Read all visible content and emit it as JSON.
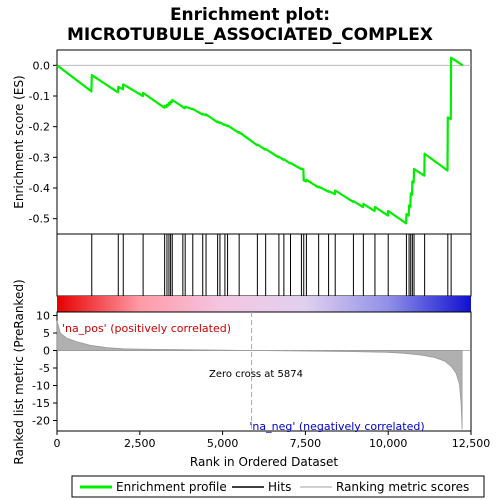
{
  "chart_data": {
    "type": "line",
    "title": "Enrichment plot:\nMICROTUBULE_ASSOCIATED_COMPLEX",
    "xlabel": "Rank in Ordered Dataset",
    "ylabel_top": "Enrichment score (ES)",
    "ylabel_bottom": "Ranked list metric (PreRanked)",
    "xlim": [
      0,
      12500
    ],
    "x_ticks": [
      0,
      2500,
      5000,
      7500,
      10000,
      12500
    ],
    "x_tick_labels": [
      "0",
      "2,500",
      "5,000",
      "7,500",
      "10,000",
      "12,500"
    ],
    "es_ylim": [
      -0.55,
      0.05
    ],
    "es_ticks": [
      0.0,
      -0.1,
      -0.2,
      -0.3,
      -0.4,
      -0.5
    ],
    "es_tick_labels": [
      "0.0",
      "-0.1",
      "-0.2",
      "-0.3",
      "-0.4",
      "-0.5"
    ],
    "metric_ylim": [
      -23,
      11
    ],
    "metric_ticks": [
      10,
      5,
      0,
      -5,
      -10,
      -15,
      -20
    ],
    "metric_tick_labels": [
      "10",
      "5",
      "0",
      "-5",
      "-10",
      "-15",
      "-20"
    ],
    "hits": [
      1050,
      1850,
      2000,
      2600,
      3250,
      3320,
      3380,
      3430,
      3480,
      3800,
      3870,
      4100,
      4400,
      4500,
      4850,
      4920,
      5070,
      5150,
      5500,
      6050,
      6300,
      6700,
      6850,
      7050,
      7380,
      7450,
      7530,
      7900,
      8200,
      8400,
      8950,
      9250,
      9600,
      10000,
      10550,
      10630,
      10680,
      10730,
      10780,
      11100,
      11800,
      11900
    ],
    "es_series": {
      "name": "Enrichment profile",
      "x": [
        0,
        1040,
        1050,
        1840,
        1850,
        1990,
        2000,
        2590,
        2600,
        3240,
        3250,
        3310,
        3320,
        3370,
        3380,
        3420,
        3430,
        3470,
        3480,
        3790,
        3800,
        3860,
        3870,
        4090,
        4100,
        4390,
        4400,
        4490,
        4500,
        4840,
        4850,
        4910,
        4920,
        5060,
        5070,
        5140,
        5150,
        5490,
        5500,
        6040,
        6050,
        6290,
        6300,
        6690,
        6700,
        6840,
        6850,
        7040,
        7050,
        7370,
        7380,
        7440,
        7450,
        7520,
        7530,
        7890,
        7900,
        8190,
        8200,
        8390,
        8400,
        8940,
        8950,
        9240,
        9250,
        9590,
        9600,
        9990,
        10000,
        10540,
        10550,
        10620,
        10630,
        10670,
        10680,
        10720,
        10730,
        10770,
        10780,
        11090,
        11100,
        11790,
        11800,
        11890,
        11900,
        12250
      ],
      "y": [
        0.0,
        -0.085,
        -0.032,
        -0.088,
        -0.07,
        -0.078,
        -0.062,
        -0.1,
        -0.09,
        -0.138,
        -0.132,
        -0.136,
        -0.128,
        -0.131,
        -0.123,
        -0.126,
        -0.118,
        -0.12,
        -0.113,
        -0.135,
        -0.137,
        -0.14,
        -0.135,
        -0.143,
        -0.142,
        -0.16,
        -0.158,
        -0.163,
        -0.16,
        -0.185,
        -0.183,
        -0.188,
        -0.186,
        -0.195,
        -0.193,
        -0.198,
        -0.196,
        -0.22,
        -0.218,
        -0.26,
        -0.258,
        -0.275,
        -0.273,
        -0.3,
        -0.298,
        -0.308,
        -0.306,
        -0.32,
        -0.318,
        -0.338,
        -0.336,
        -0.34,
        -0.375,
        -0.378,
        -0.373,
        -0.398,
        -0.395,
        -0.412,
        -0.41,
        -0.42,
        -0.408,
        -0.445,
        -0.443,
        -0.462,
        -0.452,
        -0.475,
        -0.462,
        -0.49,
        -0.475,
        -0.515,
        -0.485,
        -0.49,
        -0.457,
        -0.461,
        -0.418,
        -0.422,
        -0.378,
        -0.382,
        -0.338,
        -0.36,
        -0.288,
        -0.343,
        -0.17,
        -0.175,
        0.025,
        0.0
      ]
    },
    "metric_series": {
      "name": "Ranking metric scores",
      "x": [
        0,
        100,
        300,
        600,
        1000,
        1500,
        2000,
        3000,
        4000,
        5000,
        5874,
        7000,
        8000,
        9000,
        10000,
        10500,
        11000,
        11400,
        11700,
        11900,
        12050,
        12150,
        12200,
        12230
      ],
      "y": [
        8.5,
        5.0,
        3.5,
        2.5,
        1.5,
        0.8,
        0.5,
        0.3,
        0.2,
        0.1,
        0.0,
        -0.1,
        -0.2,
        -0.3,
        -0.5,
        -0.8,
        -1.3,
        -2.0,
        -3.0,
        -4.5,
        -6.5,
        -9.5,
        -15.0,
        -22.5
      ]
    },
    "zero_cross": 5874,
    "annotations": {
      "zero_cross_label": "Zero cross at 5874",
      "pos_label": "'na_pos' (positively correlated)",
      "neg_label": "'na_neg' (negatively correlated)"
    },
    "legend": {
      "placement": "bottom",
      "entries": [
        "Enrichment profile",
        "Hits",
        "Ranking metric scores"
      ]
    },
    "colors": {
      "es_line": "#00ee00",
      "hit_line": "#000000",
      "metric_fill": "#b0b0b0",
      "zero_cross_line": "#aaaaaa",
      "pos_label": "#cc0000",
      "neg_label": "#0000cc",
      "gradient": [
        "#e60000",
        "#ff9aa6",
        "#f4c6e2",
        "#e0d0ef",
        "#9090e8",
        "#1010d0"
      ]
    }
  }
}
